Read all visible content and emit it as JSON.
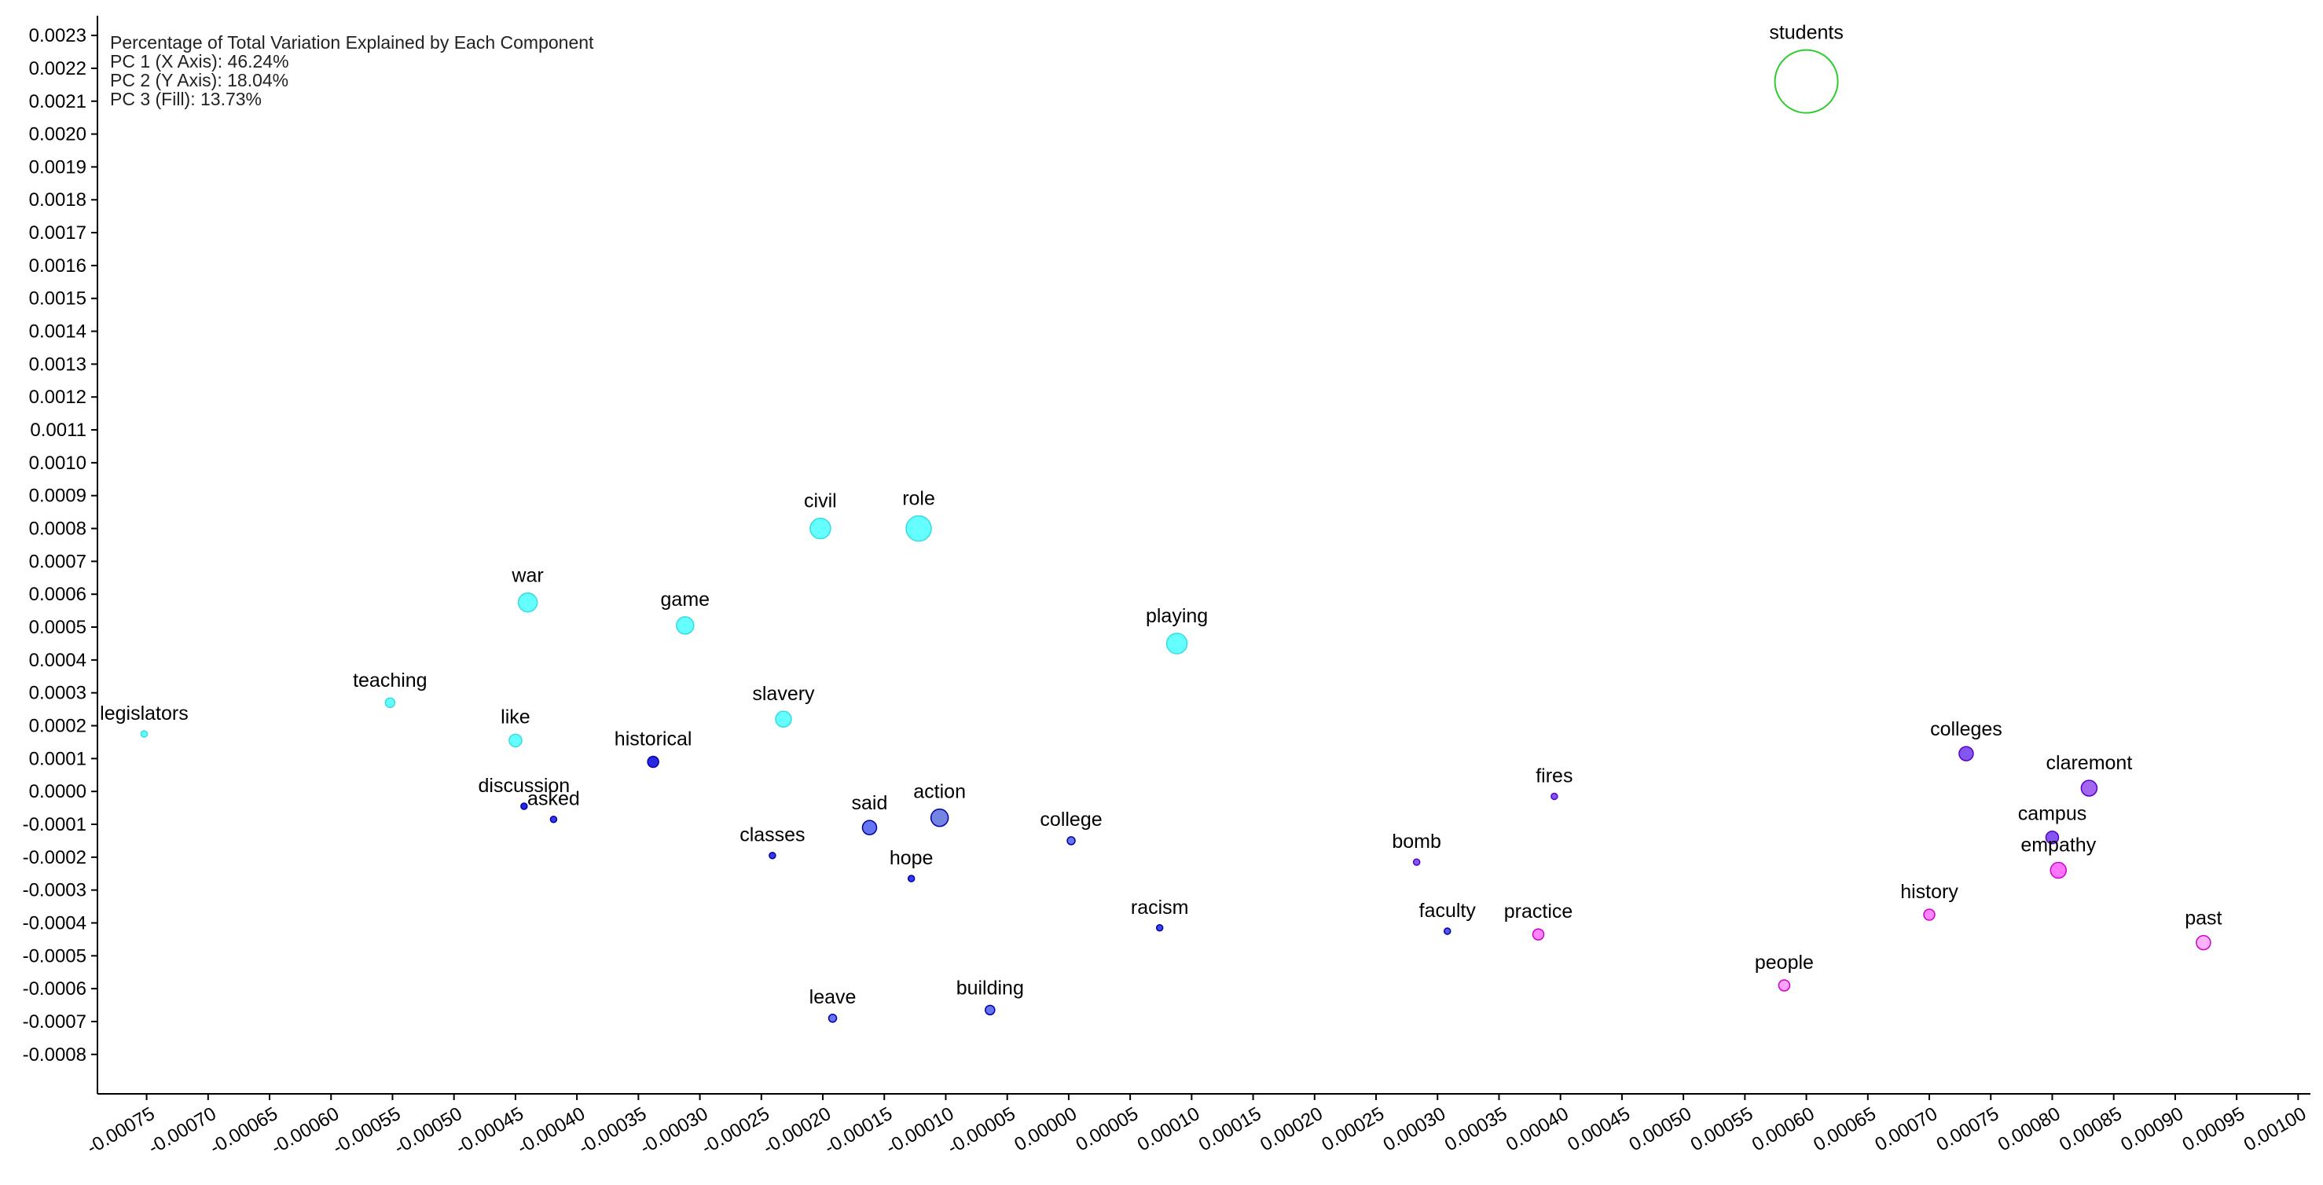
{
  "info": {
    "title": "Percentage of Total Variation Explained by Each Component",
    "pc1": "PC 1 (X Axis): 46.24%",
    "pc2": "PC 2 (Y Axis): 18.04%",
    "pc3": "PC 3 (Fill): 13.73%"
  },
  "chart_data": {
    "type": "scatter",
    "title": "Percentage of Total Variation Explained by Each Component",
    "xlim": [
      -0.00079,
      0.00101
    ],
    "ylim": [
      -0.00092,
      0.00236
    ],
    "x_ticks": [
      "-0.00075",
      "-0.00070",
      "-0.00065",
      "-0.00060",
      "-0.00055",
      "-0.00050",
      "-0.00045",
      "-0.00040",
      "-0.00035",
      "-0.00030",
      "-0.00025",
      "-0.00020",
      "-0.00015",
      "-0.00010",
      "-0.00005",
      "0.00000",
      "0.00005",
      "0.00010",
      "0.00015",
      "0.00020",
      "0.00025",
      "0.00030",
      "0.00035",
      "0.00040",
      "0.00045",
      "0.00050",
      "0.00055",
      "0.00060",
      "0.00065",
      "0.00070",
      "0.00075",
      "0.00080",
      "0.00085",
      "0.00090",
      "0.00095",
      "0.00100"
    ],
    "y_ticks": [
      "0.0023",
      "0.0022",
      "0.0021",
      "0.0020",
      "0.0019",
      "0.0018",
      "0.0017",
      "0.0016",
      "0.0015",
      "0.0014",
      "0.0013",
      "0.0012",
      "0.0011",
      "0.0010",
      "0.0009",
      "0.0008",
      "0.0007",
      "0.0006",
      "0.0005",
      "0.0004",
      "0.0003",
      "0.0002",
      "0.0001",
      "0.0000",
      "-0.0001",
      "-0.0002",
      "-0.0003",
      "-0.0004",
      "-0.0005",
      "-0.0006",
      "-0.0007",
      "-0.0008"
    ],
    "grid": false,
    "points": [
      {
        "word": "students",
        "x": 0.0006,
        "y": 0.00216,
        "r": 40,
        "color": "#2ecc2e",
        "fill": "none"
      },
      {
        "word": "civil",
        "x": -0.000202,
        "y": 0.0008,
        "r": 13,
        "color": "#33dddd",
        "fill": "#55ffff"
      },
      {
        "word": "role",
        "x": -0.000122,
        "y": 0.0008,
        "r": 16,
        "color": "#33dddd",
        "fill": "#55ffff"
      },
      {
        "word": "war",
        "x": -0.00044,
        "y": 0.000575,
        "r": 12,
        "color": "#33dddd",
        "fill": "#55ffff"
      },
      {
        "word": "game",
        "x": -0.000312,
        "y": 0.000505,
        "r": 11,
        "color": "#33dddd",
        "fill": "#55ffff"
      },
      {
        "word": "playing",
        "x": 8.8e-05,
        "y": 0.00045,
        "r": 13,
        "color": "#33dddd",
        "fill": "#55ffff"
      },
      {
        "word": "legislators",
        "x": -0.000752,
        "y": 0.000175,
        "r": 4,
        "color": "#33dddd",
        "fill": "#55ffff"
      },
      {
        "word": "teaching",
        "x": -0.000552,
        "y": 0.00027,
        "r": 6,
        "color": "#33dddd",
        "fill": "#55ffff"
      },
      {
        "word": "slavery",
        "x": -0.000232,
        "y": 0.00022,
        "r": 10,
        "color": "#33dddd",
        "fill": "#55ffff"
      },
      {
        "word": "like",
        "x": -0.00045,
        "y": 0.000155,
        "r": 8,
        "color": "#33dddd",
        "fill": "#55ffff"
      },
      {
        "word": "historical",
        "x": -0.000338,
        "y": 9e-05,
        "r": 7,
        "color": "#0000aa",
        "fill": "#1111dd"
      },
      {
        "word": "discussion",
        "x": -0.000443,
        "y": -4.5e-05,
        "r": 4,
        "color": "#0000aa",
        "fill": "#1111dd"
      },
      {
        "word": "asked",
        "x": -0.000419,
        "y": -8.5e-05,
        "r": 4,
        "color": "#0000aa",
        "fill": "#2222ee"
      },
      {
        "word": "classes",
        "x": -0.000241,
        "y": -0.000195,
        "r": 4,
        "color": "#0000aa",
        "fill": "#2222ee"
      },
      {
        "word": "said",
        "x": -0.000162,
        "y": -0.00011,
        "r": 9,
        "color": "#0000aa",
        "fill": "#5566ee"
      },
      {
        "word": "action",
        "x": -0.000105,
        "y": -8e-05,
        "r": 11,
        "color": "#0000aa",
        "fill": "#6677dd"
      },
      {
        "word": "hope",
        "x": -0.000128,
        "y": -0.000265,
        "r": 4,
        "color": "#0000aa",
        "fill": "#2222ee"
      },
      {
        "word": "college",
        "x": 2e-06,
        "y": -0.00015,
        "r": 5,
        "color": "#0000aa",
        "fill": "#5566ee"
      },
      {
        "word": "leave",
        "x": -0.000192,
        "y": -0.00069,
        "r": 5,
        "color": "#0000aa",
        "fill": "#5566ee"
      },
      {
        "word": "building",
        "x": -6.4e-05,
        "y": -0.000665,
        "r": 6,
        "color": "#0000aa",
        "fill": "#5566ee"
      },
      {
        "word": "racism",
        "x": 7.4e-05,
        "y": -0.000415,
        "r": 4,
        "color": "#0000aa",
        "fill": "#2233ee"
      },
      {
        "word": "bomb",
        "x": 0.000283,
        "y": -0.000215,
        "r": 4,
        "color": "#5500cc",
        "fill": "#7744ee"
      },
      {
        "word": "fires",
        "x": 0.000395,
        "y": -1.5e-05,
        "r": 4,
        "color": "#5500cc",
        "fill": "#7744ee"
      },
      {
        "word": "faculty",
        "x": 0.000308,
        "y": -0.000425,
        "r": 4,
        "color": "#0000aa",
        "fill": "#4444ee"
      },
      {
        "word": "practice",
        "x": 0.000382,
        "y": -0.000435,
        "r": 7,
        "color": "#cc00cc",
        "fill": "#ff77ff"
      },
      {
        "word": "people",
        "x": 0.000582,
        "y": -0.00059,
        "r": 7,
        "color": "#cc00cc",
        "fill": "#ff99ff"
      },
      {
        "word": "history",
        "x": 0.0007,
        "y": -0.000375,
        "r": 7,
        "color": "#cc00cc",
        "fill": "#ff77ff"
      },
      {
        "word": "colleges",
        "x": 0.00073,
        "y": 0.000115,
        "r": 9,
        "color": "#5500cc",
        "fill": "#7744ee"
      },
      {
        "word": "claremont",
        "x": 0.00083,
        "y": 1e-05,
        "r": 10,
        "color": "#5500cc",
        "fill": "#9955ee"
      },
      {
        "word": "campus",
        "x": 0.0008,
        "y": -0.00014,
        "r": 8,
        "color": "#5500cc",
        "fill": "#7744ee"
      },
      {
        "word": "empathy",
        "x": 0.000805,
        "y": -0.00024,
        "r": 10,
        "color": "#cc00cc",
        "fill": "#ff66ff"
      },
      {
        "word": "past",
        "x": 0.000923,
        "y": -0.00046,
        "r": 9,
        "color": "#cc00cc",
        "fill": "#ffaaff"
      }
    ]
  }
}
